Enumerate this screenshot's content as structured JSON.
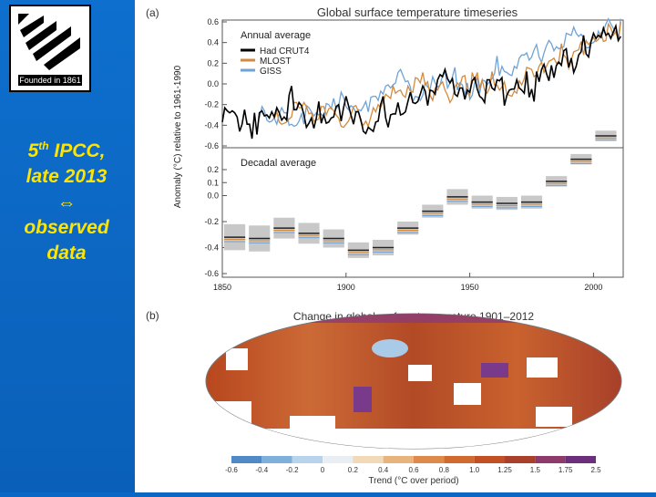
{
  "slide": {
    "logo_caption": "Founded in 1861",
    "line1_num": "5",
    "line1_sup": "th",
    "line1_rest": " IPCC,",
    "line2": "late 2013",
    "arrow": "⇔",
    "line3": "observed",
    "line4": "data"
  },
  "colors": {
    "slide_bg": "#0b67c4",
    "text": "#ffe400",
    "hadcrut": "#000000",
    "mlost": "#d48a3c",
    "giss": "#6fa3d6"
  },
  "chart_data": [
    {
      "type": "line",
      "panel_label": "(a)",
      "title": "Global surface temperature timeseries",
      "subtitle": "Annual average",
      "ylabel": "Anomaly (°C) relative to 1961-1990",
      "ylim": [
        -0.6,
        0.6
      ],
      "xlim": [
        1850,
        2012
      ],
      "yticks": [
        "0.6",
        "0.4",
        "0.2",
        "0.0",
        "-0.2",
        "-0.4",
        "-0.6"
      ],
      "legend": [
        "Had CRUT4",
        "MLOST",
        "GISS"
      ],
      "legend_position": "top-left",
      "x_start": 1850,
      "series": [
        {
          "name": "Had CRUT4",
          "color_key": "hadcrut",
          "values": [
            -0.37,
            -0.23,
            -0.26,
            -0.28,
            -0.26,
            -0.28,
            -0.32,
            -0.46,
            -0.39,
            -0.25,
            -0.39,
            -0.39,
            -0.53,
            -0.28,
            -0.49,
            -0.28,
            -0.26,
            -0.31,
            -0.3,
            -0.33,
            -0.27,
            -0.32,
            -0.23,
            -0.28,
            -0.35,
            -0.32,
            -0.35,
            -0.11,
            -0.02,
            -0.25,
            -0.25,
            -0.18,
            -0.21,
            -0.3,
            -0.42,
            -0.38,
            -0.33,
            -0.43,
            -0.33,
            -0.17,
            -0.38,
            -0.3,
            -0.38,
            -0.37,
            -0.33,
            -0.32,
            -0.22,
            -0.2,
            -0.36,
            -0.23,
            -0.12,
            -0.21,
            -0.3,
            -0.39,
            -0.27,
            -0.27,
            -0.35,
            -0.46,
            -0.48,
            -0.42,
            -0.44,
            -0.46,
            -0.37,
            -0.36,
            -0.2,
            -0.12,
            -0.33,
            -0.42,
            -0.3,
            -0.29,
            -0.29,
            -0.18,
            -0.3,
            -0.29,
            -0.27,
            -0.17,
            -0.08,
            -0.18,
            -0.19,
            -0.17,
            -0.1,
            -0.02,
            -0.07,
            -0.21,
            -0.06,
            -0.07,
            -0.1,
            0.04,
            0.09,
            0.07,
            0.14,
            0.05,
            0.01,
            0.05,
            -0.1,
            -0.12,
            -0.04,
            -0.04,
            -0.15,
            -0.06,
            -0.08,
            0.03,
            0.06,
            -0.05,
            -0.12,
            -0.14,
            -0.18,
            0.04,
            0.04,
            -0.04,
            -0.06,
            0.04,
            0.03,
            0.06,
            -0.21,
            -0.11,
            -0.06,
            -0.05,
            -0.05,
            0.04,
            -0.04,
            -0.06,
            -0.09,
            0.12,
            -0.13,
            -0.05,
            -0.17,
            0.12,
            0.02,
            0.14,
            0.19,
            0.1,
            0.03,
            0.18,
            0.06,
            0.18,
            0.21,
            0.18,
            0.32,
            0.34,
            0.16,
            0.25,
            0.11,
            0.17,
            0.28,
            0.31,
            0.47,
            0.29,
            0.26,
            0.41,
            0.49,
            0.44,
            0.47,
            0.45,
            0.54,
            0.47,
            0.49,
            0.44,
            0.5,
            0.56,
            0.42,
            0.46
          ]
        },
        {
          "name": "MLOST",
          "color_key": "mlost",
          "values": [
            -0.34,
            -0.27,
            -0.37,
            -0.39,
            -0.38,
            -0.37,
            -0.34,
            -0.32,
            -0.18,
            -0.18,
            -0.23,
            -0.23,
            -0.18,
            -0.22,
            -0.29,
            -0.28,
            -0.36,
            -0.35,
            -0.34,
            -0.22,
            -0.22,
            -0.3,
            -0.24,
            -0.23,
            -0.26,
            -0.3,
            -0.33,
            -0.41,
            -0.42,
            -0.39,
            -0.36,
            -0.3,
            -0.22,
            -0.21,
            -0.27,
            -0.37,
            -0.4,
            -0.36,
            -0.41,
            -0.32,
            -0.23,
            -0.27,
            -0.2,
            -0.23,
            -0.17,
            -0.1,
            -0.12,
            -0.14,
            -0.02,
            -0.09,
            -0.07,
            -0.06,
            -0.11,
            -0.13,
            -0.02,
            -0.07,
            -0.08,
            0.06,
            0.05,
            0.01,
            0.11,
            -0.01,
            0.02,
            -0.11,
            -0.16,
            -0.04,
            -0.06,
            -0.01,
            0.02,
            -0.06,
            -0.11,
            -0.18,
            -0.14,
            -0.03,
            0.01,
            -0.02,
            0.07,
            0.08,
            -0.08,
            -0.12,
            0.11,
            0.03,
            0.11,
            -0.04,
            0.04,
            -0.06,
            -0.09,
            -0.04,
            0.12,
            -0.01,
            -0.01,
            -0.06,
            -0.03,
            0.02,
            -0.1,
            -0.11,
            -0.12,
            -0.07,
            -0.09,
            0.03,
            -0.01,
            0.05,
            0.16,
            0.15,
            0.14,
            0.07,
            0.09,
            0.17,
            0.21,
            0.11,
            0.17,
            0.22,
            0.23,
            0.25,
            0.2,
            0.22,
            0.39,
            0.28,
            0.25,
            0.15,
            0.23,
            0.31,
            0.32,
            0.33,
            0.41,
            0.28,
            0.42,
            0.38,
            0.41,
            0.45,
            0.41,
            0.43,
            0.49,
            0.41,
            0.42,
            0.58,
            0.54,
            0.47,
            0.51,
            0.41,
            0.6
          ]
        },
        {
          "name": "GISS",
          "color_key": "giss",
          "values": [
            -0.33,
            -0.22,
            -0.26,
            -0.35,
            -0.37,
            -0.36,
            -0.33,
            -0.39,
            -0.29,
            -0.23,
            -0.28,
            -0.28,
            -0.4,
            -0.39,
            -0.41,
            -0.4,
            -0.36,
            -0.29,
            -0.39,
            -0.21,
            -0.23,
            -0.27,
            -0.31,
            -0.28,
            -0.3,
            -0.29,
            -0.32,
            -0.19,
            -0.2,
            -0.24,
            -0.14,
            -0.24,
            -0.21,
            -0.08,
            -0.13,
            -0.22,
            -0.25,
            -0.21,
            -0.23,
            -0.28,
            -0.25,
            -0.26,
            -0.22,
            -0.17,
            -0.27,
            -0.13,
            -0.12,
            -0.12,
            -0.16,
            -0.07,
            -0.1,
            -0.02,
            -0.01,
            -0.04,
            -0.01,
            0.01,
            0.11,
            0.14,
            0.08,
            0.02,
            0.03,
            -0.03,
            -0.17,
            -0.12,
            -0.13,
            -0.16,
            -0.11,
            0.01,
            -0.03,
            -0.05,
            0.07,
            0.01,
            -0.03,
            -0.01,
            0.08,
            0.12,
            -0.04,
            0.01,
            0.07,
            0.16,
            -0.06,
            0.01,
            -0.01,
            -0.11,
            0.01,
            -0.15,
            -0.11,
            0.01,
            0.06,
            -0.09,
            0.04,
            0.03,
            -0.01,
            0.02,
            0.05,
            0.1,
            0.27,
            0.08,
            0.17,
            0.12,
            0.11,
            0.09,
            0.08,
            0.17,
            0.15,
            0.25,
            0.28,
            0.28,
            0.3,
            0.23,
            0.26,
            0.33,
            0.38,
            0.26,
            0.21,
            0.3,
            0.37,
            0.42,
            0.39,
            0.32,
            0.36,
            0.34,
            0.35,
            0.36,
            0.49,
            0.48,
            0.47,
            0.55,
            0.49,
            0.46,
            0.48,
            0.45,
            0.35,
            0.35,
            0.39,
            0.4,
            0.43,
            0.51,
            0.45,
            0.51,
            0.58,
            0.63,
            0.58,
            0.54,
            0.49,
            0.44,
            0.63
          ]
        }
      ]
    },
    {
      "type": "bar",
      "subtitle": "Decadal average",
      "ylim": [
        -0.6,
        0.2
      ],
      "yticks": [
        "0.2",
        "0.1",
        "0.0",
        "-0.2",
        "-0.4",
        "-0.6"
      ],
      "xticks": [
        "1850",
        "1900",
        "1950",
        "2000"
      ],
      "decades": [
        1850,
        1860,
        1870,
        1880,
        1890,
        1900,
        1910,
        1920,
        1930,
        1940,
        1950,
        1960,
        1970,
        1980,
        1990,
        2000
      ],
      "central": [
        -0.32,
        -0.33,
        -0.25,
        -0.29,
        -0.33,
        -0.42,
        -0.4,
        -0.25,
        -0.12,
        -0.01,
        -0.05,
        -0.06,
        -0.05,
        0.11,
        0.28,
        0.46
      ],
      "uncertainty": [
        0.1,
        0.1,
        0.08,
        0.08,
        0.07,
        0.06,
        0.06,
        0.05,
        0.05,
        0.06,
        0.05,
        0.05,
        0.05,
        0.04,
        0.04,
        0.04
      ]
    },
    {
      "type": "heatmap",
      "panel_label": "(b)",
      "title": "Change in global surface temperature 1901–2012",
      "colorbar_label": "Trend (°C over period)",
      "colorbar_ticks": [
        "-0.6",
        "-0.4",
        "-0.2",
        "0",
        "0.2",
        "0.4",
        "0.6",
        "0.8",
        "1.0",
        "1.25",
        "1.5",
        "1.75",
        "2.5"
      ]
    }
  ]
}
